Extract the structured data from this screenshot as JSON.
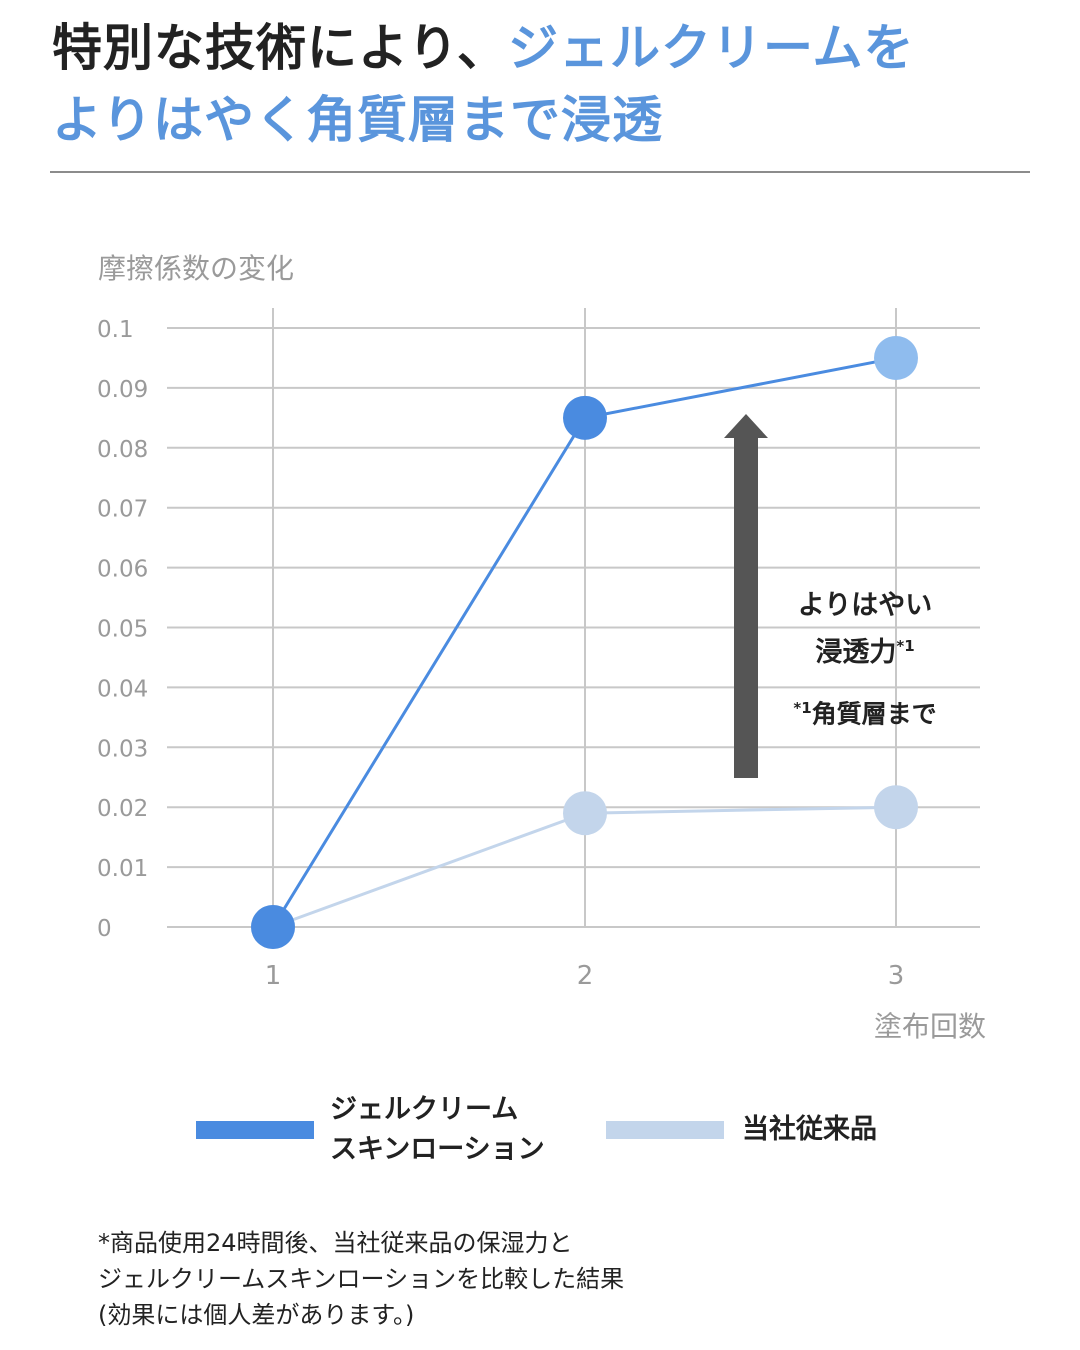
{
  "header": {
    "title_black": "特別な技術により、",
    "title_blue_1": "ジェルクリームを",
    "title_blue_2": "よりはやく角質層まで浸透"
  },
  "chart_data": {
    "type": "line",
    "ylabel": "摩擦係数の変化",
    "xlabel": "塗布回数",
    "categories": [
      1,
      2,
      3
    ],
    "ylim": [
      0,
      0.1
    ],
    "yticks": [
      "0",
      "0.01",
      "0.02",
      "0.03",
      "0.04",
      "0.05",
      "0.06",
      "0.07",
      "0.08",
      "0.09",
      "0.1"
    ],
    "grid": true,
    "series": [
      {
        "name": "ジェルクリーム スキンローション",
        "values": [
          0,
          0.085,
          0.095
        ],
        "color": "#4a8be0",
        "end_color": "#8fbcee"
      },
      {
        "name": "当社従来品",
        "values": [
          0,
          0.019,
          0.02
        ],
        "color": "#c3d5eb"
      }
    ],
    "annotation": {
      "main_line1": "よりはやい",
      "main_line2": "浸透力",
      "main_sup": "*1",
      "foot_sup": "*1",
      "foot_text": "角質層まで"
    }
  },
  "legend": {
    "item1_line1": "ジェルクリーム",
    "item1_line2": "スキンローション",
    "item1_color": "#4a8be0",
    "item2_label": "当社従来品",
    "item2_color": "#c3d5eb"
  },
  "footnote": {
    "line1": "*商品使用24時間後、当社従来品の保湿力と",
    "line2": "ジェルクリームスキンローションを比較した結果",
    "line3": "(効果には個人差があります。)"
  },
  "colors": {
    "arrow": "#555555",
    "grid": "#c8c8c8",
    "axis_text": "#9a9a9a"
  }
}
